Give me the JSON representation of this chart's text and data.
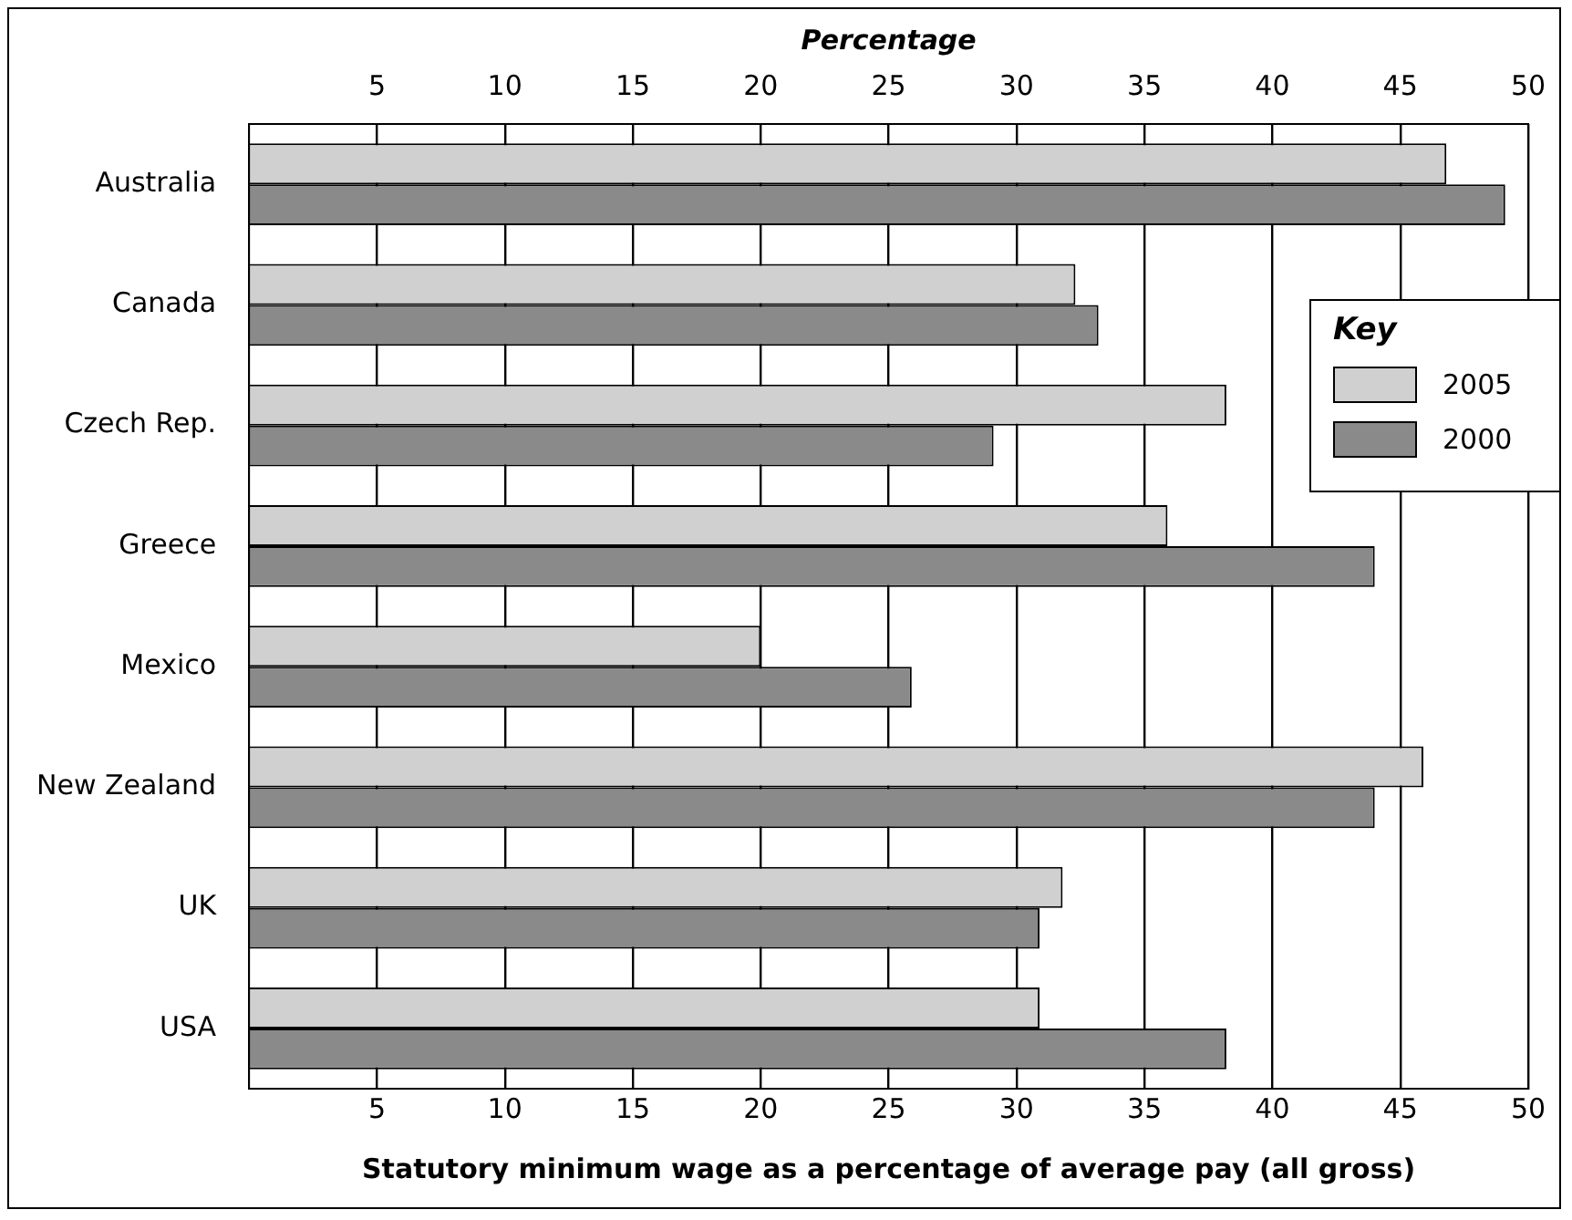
{
  "chart_data": {
    "type": "bar",
    "orientation": "horizontal",
    "xlabel": "Statutory minimum wage as a percentage of average pay (all gross)",
    "x2label": "Percentage",
    "legend_title": "Key",
    "categories": [
      "Australia",
      "Canada",
      "Czech Rep.",
      "Greece",
      "Mexico",
      "New Zealand",
      "UK",
      "USA"
    ],
    "series": [
      {
        "name": "2005",
        "color": "#d0d0d0",
        "values": [
          46.8,
          32.3,
          38.2,
          35.9,
          20,
          45.9,
          31.8,
          30.9
        ]
      },
      {
        "name": "2000",
        "color": "#8a8a8a",
        "values": [
          49.1,
          33.2,
          29.1,
          44.0,
          25.9,
          44.0,
          30.9,
          38.2
        ]
      }
    ],
    "xlim": [
      0,
      50
    ],
    "xticks": [
      5,
      10,
      15,
      20,
      25,
      30,
      35,
      40,
      45,
      50
    ],
    "x2lim": [
      0,
      50
    ],
    "x2ticks": [
      5,
      10,
      15,
      20,
      25,
      30,
      35,
      40,
      45,
      50
    ],
    "grid": "x",
    "legend": "right"
  }
}
